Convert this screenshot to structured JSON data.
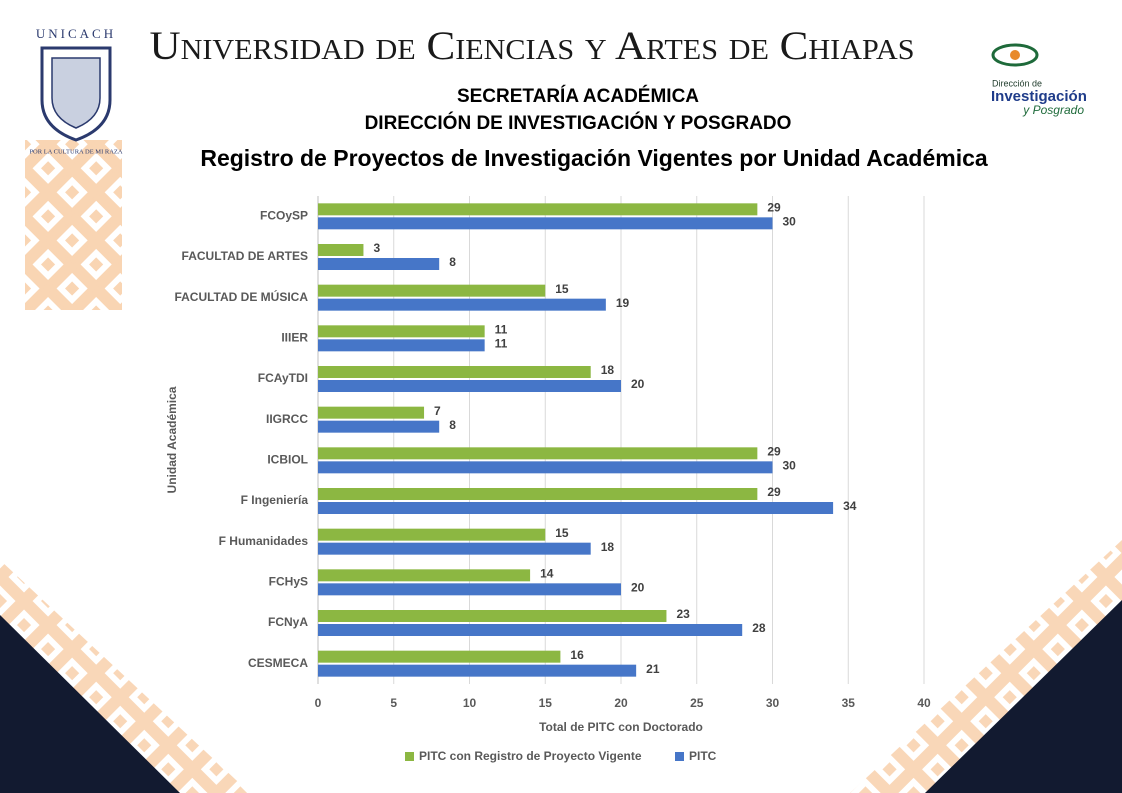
{
  "header": {
    "university": "Universidad de Ciencias y Artes de Chiapas",
    "line1": "SECRETARÍA ACADÉMICA",
    "line2": "DIRECCIÓN DE INVESTIGACIÓN Y POSGRADO",
    "logo_left_top": "UNICACH",
    "logo_left_bottom": "POR LA CULTURA DE MI RAZA",
    "logo_right_1": "Dirección de",
    "logo_right_2": "Investigación",
    "logo_right_3": "y Posgrado"
  },
  "chart_data": {
    "type": "bar",
    "orientation": "horizontal",
    "title": "Registro de Proyectos de Investigación Vigentes por Unidad Académica",
    "x_label": "Total de PITC con Doctorado",
    "y_label": "Unidad Académica",
    "categories": [
      "FCOySP",
      "FACULTAD DE ARTES",
      "FACULTAD DE MÚSICA",
      "IIIER",
      "FCAyTDI",
      "IIGRCC",
      "ICBIOL",
      "F Ingeniería",
      "F Humanidades",
      "FCHyS",
      "FCNyA",
      "CESMECA"
    ],
    "series": [
      {
        "name": "PITC con Registro de Proyecto Vigente",
        "color": "#8cb742",
        "values": [
          29,
          3,
          15,
          11,
          18,
          7,
          29,
          29,
          15,
          14,
          23,
          16
        ]
      },
      {
        "name": "PITC",
        "color": "#4676c8",
        "values": [
          30,
          8,
          19,
          11,
          20,
          8,
          30,
          34,
          18,
          20,
          28,
          21
        ]
      }
    ],
    "xlim": [
      0,
      40
    ],
    "xticks": [
      0,
      5,
      10,
      15,
      20,
      25,
      30,
      35,
      40
    ],
    "grid": true,
    "legend": "bottom"
  }
}
